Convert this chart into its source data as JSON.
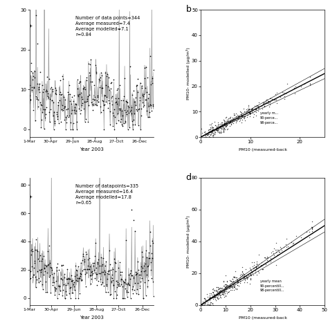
{
  "panel_a": {
    "annotation": "Number of data points=344\nAverage measured=7.4\nAverage modelled=7.1\nr=0.84",
    "ts_ylim": [
      -2,
      30
    ],
    "ts_yticks": [
      0,
      10,
      20,
      30
    ]
  },
  "panel_b": {
    "label": "b",
    "xlabel": "PM10 (measured-back",
    "ylabel": "PM10- modelled (μg/m³)",
    "xlim": [
      0,
      25
    ],
    "ylim": [
      0,
      50
    ],
    "xticks": [
      0,
      10,
      20
    ],
    "yticks": [
      0,
      10,
      20,
      30,
      40,
      50
    ],
    "legend": "yearly m...\n90-perce...\n98-perce..."
  },
  "panel_c": {
    "annotation": "Number of datapoints=335\nAverage measured=16.4\nAverage modelled=17.8\nr=0.65",
    "ts_ylim": [
      -5,
      85
    ],
    "ts_yticks": [
      0,
      20,
      40,
      60,
      80
    ]
  },
  "panel_d": {
    "label": "d",
    "xlabel": "PM10 (measured-back",
    "ylabel": "PM10- modelled (μg/m³)",
    "xlim": [
      0,
      50
    ],
    "ylim": [
      0,
      80
    ],
    "xticks": [
      0,
      10,
      20,
      30,
      40,
      50
    ],
    "yticks": [
      0,
      20,
      40,
      60,
      80
    ],
    "legend": "yearly mean\n90-percentill...\n98-percentill..."
  },
  "xticklabels": [
    "1-Mar",
    "30-Apr",
    "29-Jun",
    "28-Aug",
    "27-Oct",
    "26-Dec"
  ],
  "xlabel": "Year 2003",
  "bg_color": "#ffffff"
}
